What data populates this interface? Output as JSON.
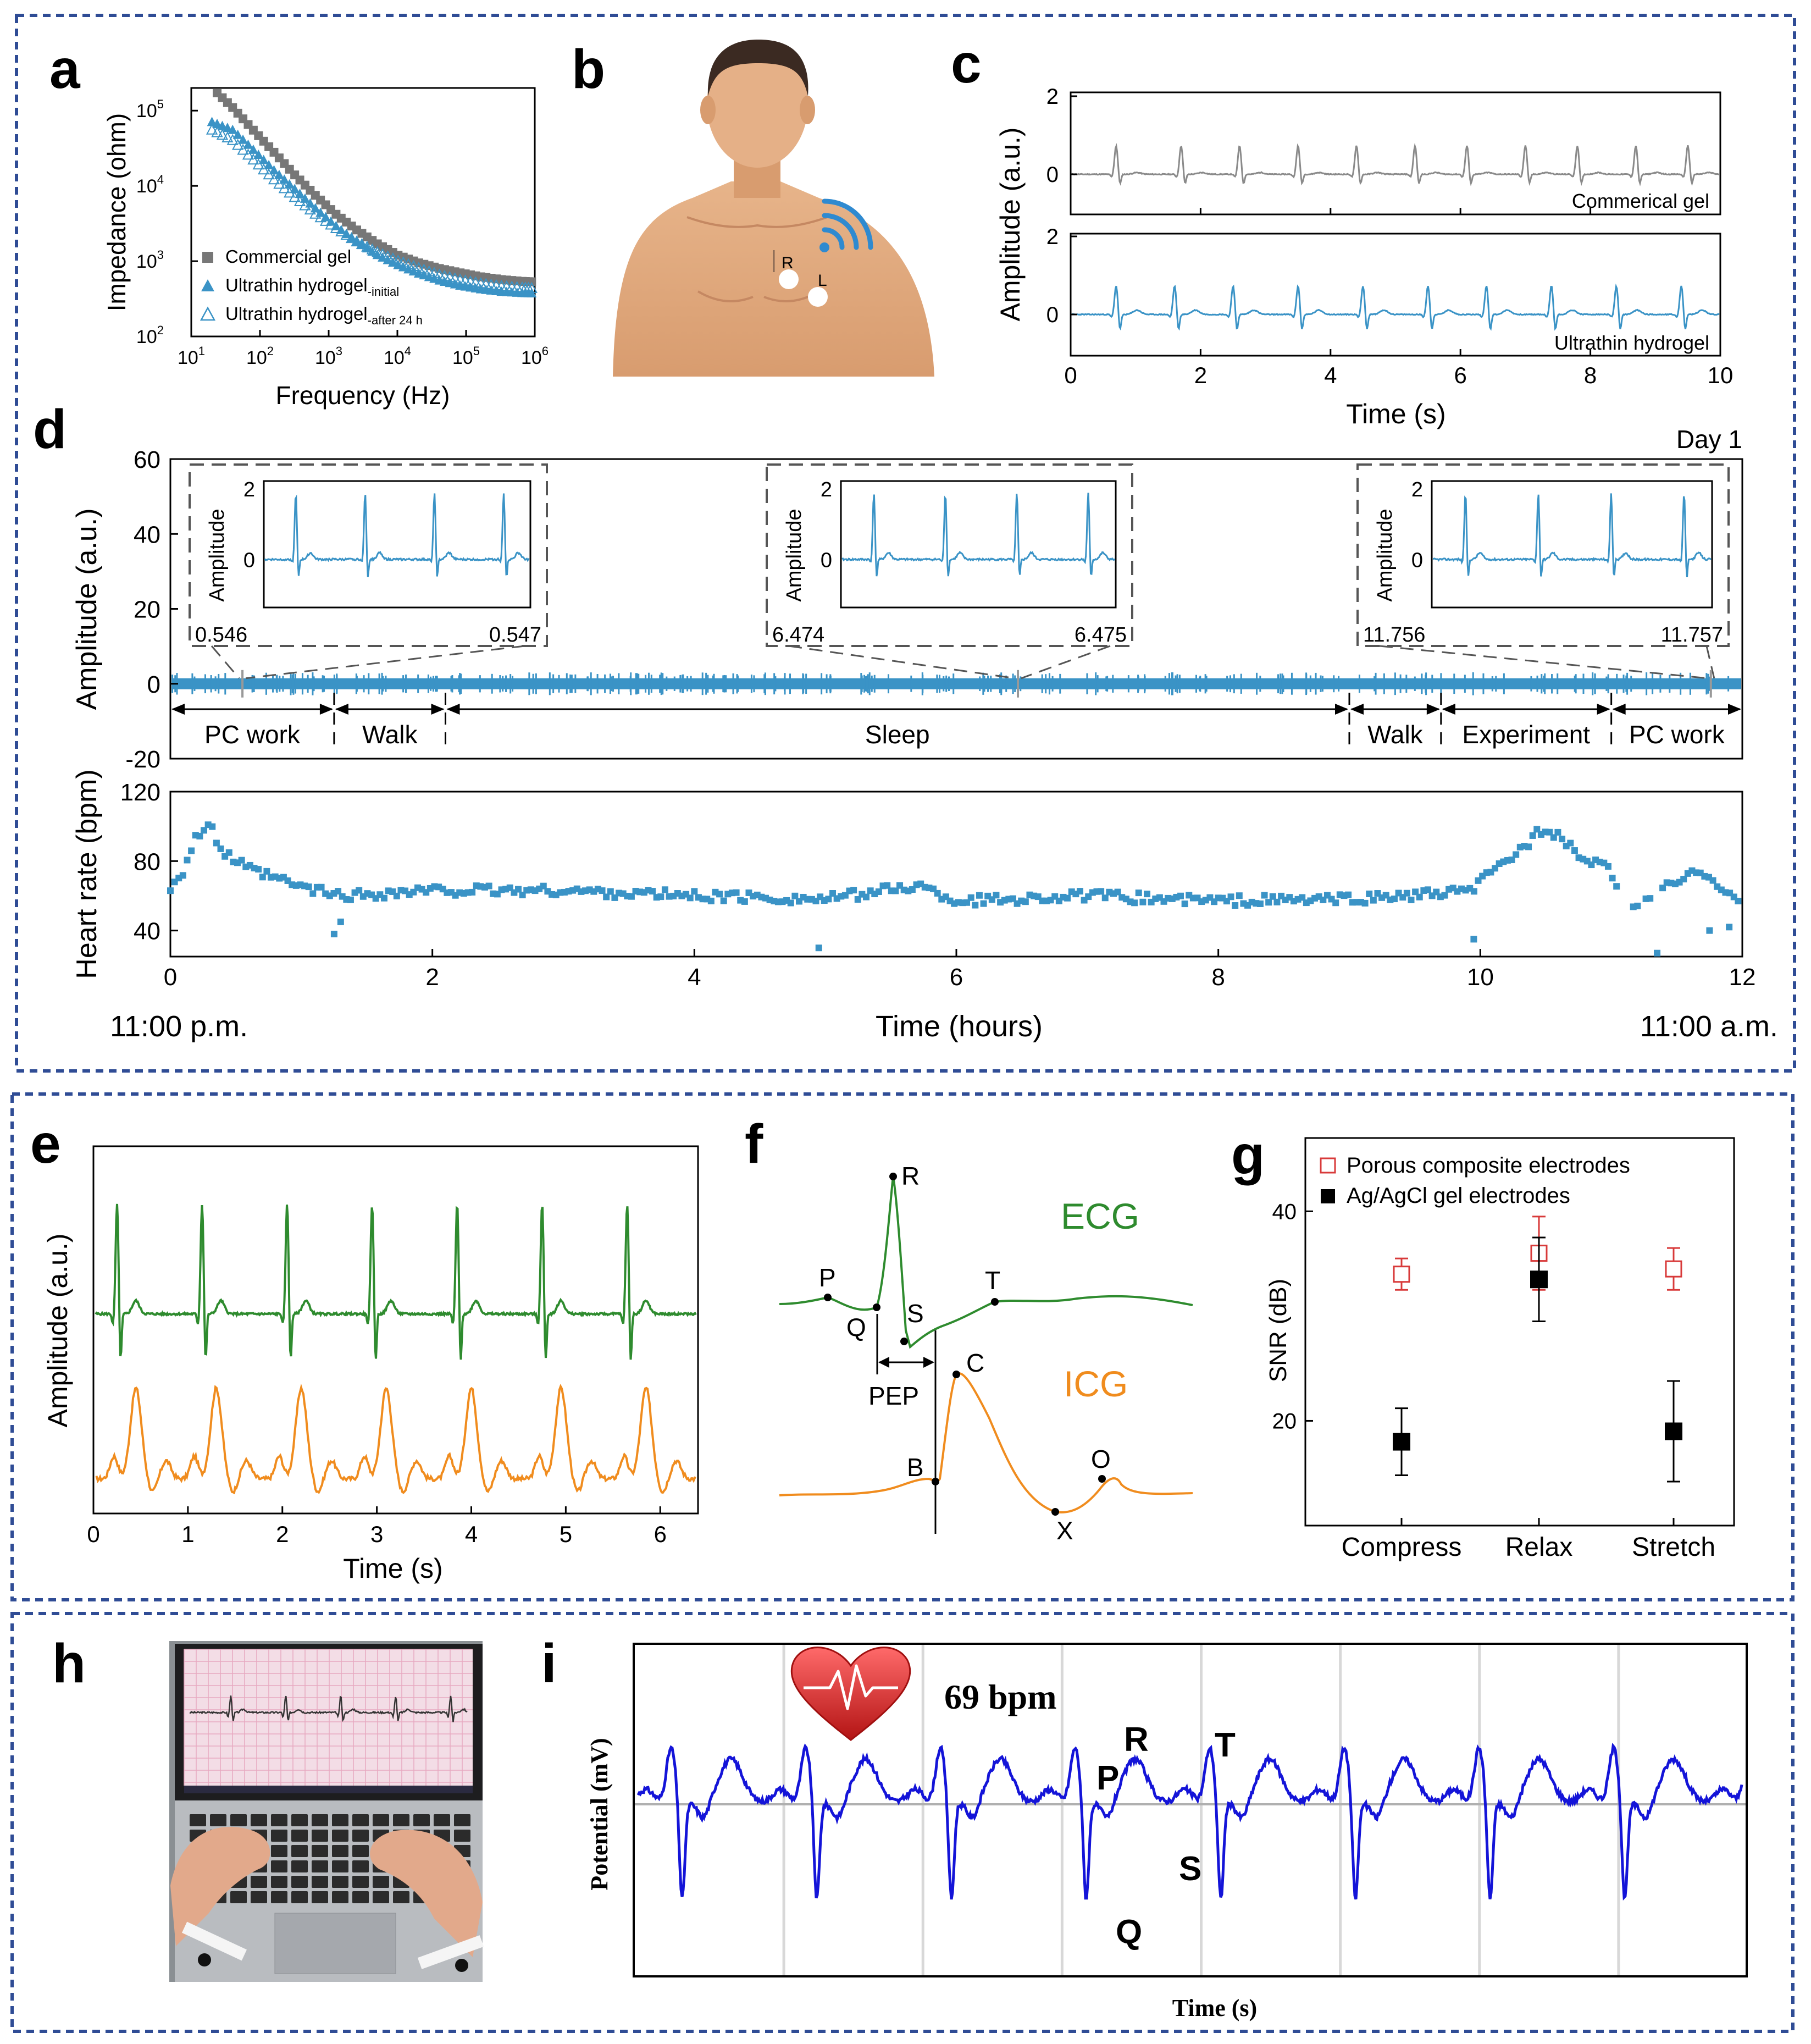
{
  "colors": {
    "frame": "#2f4c95",
    "blue": "#3a93c6",
    "grey": "#8a8a8a",
    "green": "#2e8b2e",
    "orange": "#f08c1e",
    "red": "#d83a3a",
    "deep_blue": "#1414d8"
  },
  "panel_labels": [
    "a",
    "b",
    "c",
    "d",
    "e",
    "f",
    "g",
    "h",
    "i"
  ],
  "chart_data": [
    {
      "panel": "a",
      "type": "scatter",
      "xlabel": "Frequency (Hz)",
      "ylabel": "Impedance (ohm)",
      "xscale": "log",
      "yscale": "log",
      "xlim": [
        10,
        1000000
      ],
      "ylim": [
        100,
        200000
      ],
      "x_ticks": [
        "10",
        "100",
        "1000",
        "10000",
        "100000",
        "1000000"
      ],
      "y_ticks": [
        "100",
        "1000",
        "10000",
        "100000"
      ],
      "x": [
        20,
        40,
        80,
        160,
        320,
        640,
        1280,
        2560,
        5120,
        10240,
        20480,
        40960,
        81920,
        163840,
        327680,
        655360,
        1000000
      ],
      "series": [
        {
          "name": "Commercial gel",
          "marker": "filled-square",
          "values": [
            200000,
            110000,
            55000,
            28000,
            14000,
            7500,
            4200,
            2600,
            1700,
            1200,
            950,
            800,
            700,
            620,
            570,
            540,
            530
          ]
        },
        {
          "name": "Ultrathin hydrogel",
          "name_sub": "-initial",
          "marker": "filled-triangle",
          "values": [
            70000,
            55000,
            30000,
            16000,
            9000,
            5000,
            2900,
            1800,
            1200,
            880,
            680,
            550,
            470,
            420,
            390,
            375,
            370
          ]
        },
        {
          "name": "Ultrathin hydrogel",
          "name_sub": "-after 24 h",
          "marker": "open-triangle",
          "values": [
            55000,
            40000,
            22000,
            12000,
            7000,
            4200,
            2700,
            1800,
            1300,
            1000,
            800,
            650,
            560,
            500,
            460,
            440,
            430
          ]
        }
      ],
      "legend_position": "bottom-left"
    },
    {
      "panel": "c",
      "type": "line",
      "xlabel": "Time (s)",
      "ylabel": "Amplitude (a.u.)",
      "xlim": [
        0,
        10
      ],
      "x_ticks": [
        0,
        2,
        4,
        6,
        8,
        10
      ],
      "y_ticks": [
        0,
        2
      ],
      "series": [
        {
          "name": "Commerical gel",
          "color": "grey",
          "beats_s": [
            0.7,
            1.7,
            2.6,
            3.5,
            4.4,
            5.3,
            6.1,
            7.0,
            7.8,
            8.7,
            9.5
          ]
        },
        {
          "name": "Ultrathin hydrogel",
          "color": "blue",
          "beats_s": [
            0.7,
            1.6,
            2.5,
            3.5,
            4.5,
            5.5,
            6.4,
            7.4,
            8.4,
            9.4
          ]
        }
      ]
    },
    {
      "panel": "d-top",
      "type": "line",
      "ylabel": "Amplitude (a.u.)",
      "xlim": [
        0,
        12
      ],
      "ylim": [
        -20,
        60
      ],
      "y_ticks": [
        -20,
        0,
        20,
        40,
        60
      ],
      "corner_label": "Day 1",
      "activities": [
        {
          "label": "PC work",
          "start": 0,
          "end": 1.25
        },
        {
          "label": "Walk",
          "start": 1.25,
          "end": 2.1
        },
        {
          "label": "Sleep",
          "start": 2.1,
          "end": 9.0
        },
        {
          "label": "Walk",
          "start": 9.0,
          "end": 9.7
        },
        {
          "label": "Experiment",
          "start": 9.7,
          "end": 11.0
        },
        {
          "label": "PC work",
          "start": 11.0,
          "end": 12.0
        }
      ],
      "insets": [
        {
          "ylabel": "Amplitude",
          "y_ticks": [
            "0",
            "2"
          ],
          "x_start": "0.546",
          "x_end": "0.547",
          "at_hours": 0.55
        },
        {
          "ylabel": "Amplitude",
          "y_ticks": [
            "0",
            "2"
          ],
          "x_start": "6.474",
          "x_end": "6.475",
          "at_hours": 6.47
        },
        {
          "ylabel": "Amplitude",
          "y_ticks": [
            "0",
            "2"
          ],
          "x_start": "11.756",
          "x_end": "11.757",
          "at_hours": 11.76
        }
      ]
    },
    {
      "panel": "d-bottom",
      "type": "scatter",
      "xlabel": "Time (hours)",
      "ylabel": "Heart rate (bpm)",
      "xlim": [
        0,
        12
      ],
      "ylim": [
        25,
        120
      ],
      "x_ticks": [
        0,
        2,
        4,
        6,
        8,
        10,
        12
      ],
      "y_ticks": [
        40,
        80,
        120
      ],
      "start_label": "11:00 p.m.",
      "end_label": "11:00 a.m.",
      "anchor_points": [
        [
          0,
          65
        ],
        [
          0.1,
          75
        ],
        [
          0.2,
          95
        ],
        [
          0.3,
          100
        ],
        [
          0.4,
          85
        ],
        [
          0.6,
          75
        ],
        [
          1.0,
          65
        ],
        [
          1.3,
          60
        ],
        [
          2.0,
          63
        ],
        [
          3.0,
          63
        ],
        [
          4.0,
          60
        ],
        [
          5.0,
          58
        ],
        [
          5.7,
          66
        ],
        [
          6.0,
          57
        ],
        [
          7.0,
          60
        ],
        [
          8.0,
          57
        ],
        [
          9.0,
          58
        ],
        [
          9.9,
          62
        ],
        [
          10.2,
          80
        ],
        [
          10.5,
          100
        ],
        [
          10.8,
          80
        ],
        [
          11.0,
          75
        ],
        [
          11.1,
          52
        ],
        [
          11.5,
          68
        ],
        [
          11.7,
          75
        ],
        [
          12.0,
          55
        ]
      ],
      "outliers": [
        [
          1.25,
          38
        ],
        [
          1.3,
          45
        ],
        [
          4.95,
          30
        ],
        [
          9.95,
          35
        ],
        [
          11.35,
          27
        ],
        [
          11.75,
          40
        ],
        [
          11.9,
          42
        ]
      ]
    },
    {
      "panel": "e",
      "type": "line",
      "xlabel": "Time (s)",
      "ylabel": "Amplitude (a.u.)",
      "xlim": [
        0,
        6.4
      ],
      "x_ticks": [
        0,
        1,
        2,
        3,
        4,
        5,
        6
      ],
      "series": [
        {
          "name": "ECG",
          "color": "green",
          "beats_s": [
            0.25,
            1.15,
            2.05,
            2.95,
            3.85,
            4.75,
            5.65
          ]
        },
        {
          "name": "ICG",
          "color": "orange",
          "beats_s": [
            0.45,
            1.3,
            2.2,
            3.1,
            4.0,
            4.95,
            5.85
          ]
        }
      ]
    },
    {
      "panel": "f",
      "type": "line",
      "series": [
        {
          "name": "ECG",
          "color": "green"
        },
        {
          "name": "ICG",
          "color": "orange"
        }
      ],
      "points": [
        "P",
        "Q",
        "R",
        "S",
        "T",
        "B",
        "C",
        "X",
        "O"
      ],
      "interval_label": "PEP"
    },
    {
      "panel": "g",
      "type": "scatter",
      "ylabel": "SNR (dB)",
      "categories": [
        "Compress",
        "Relax",
        "Stretch"
      ],
      "ylim": [
        10,
        47
      ],
      "y_ticks": [
        20,
        40
      ],
      "series": [
        {
          "name": "Porous composite electrodes",
          "marker": "open-square",
          "color": "red",
          "values": [
            34,
            36,
            34.5
          ],
          "err": [
            1.5,
            3.5,
            2
          ]
        },
        {
          "name": "Ag/AgCl gel electrodes",
          "marker": "filled-square",
          "color": "black",
          "values": [
            18,
            33.5,
            19
          ],
          "err": [
            3.2,
            4,
            4.8
          ]
        }
      ],
      "legend_position": "top"
    },
    {
      "panel": "i",
      "type": "line",
      "xlabel": "Time (s)",
      "ylabel": "Potential (mV)",
      "heart_rate_label": "69 bpm",
      "wave_labels": [
        "P",
        "Q",
        "R",
        "S",
        "T"
      ],
      "beat_count": 9
    }
  ],
  "panel_b": {
    "electrode_labels": [
      "R",
      "L"
    ]
  }
}
